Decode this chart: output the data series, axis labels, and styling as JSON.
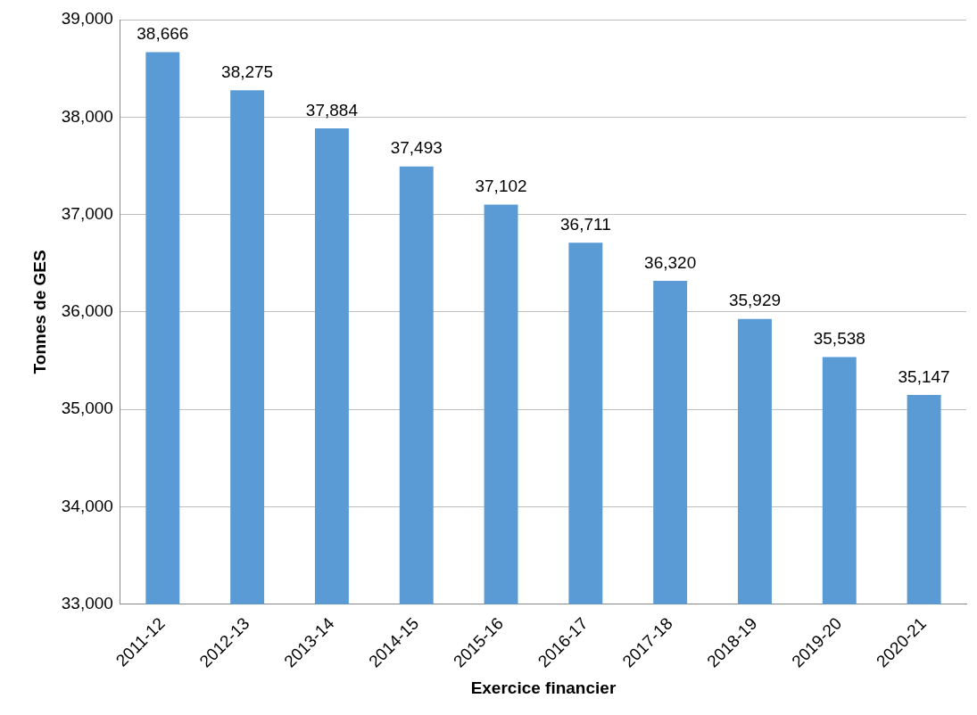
{
  "chart_data": {
    "type": "bar",
    "xlabel": "Exercice financier",
    "ylabel": "Tonnes de GES",
    "categories": [
      "2011-12",
      "2012-13",
      "2013-14",
      "2014-15",
      "2015-16",
      "2016-17",
      "2017-18",
      "2018-19",
      "2019-20",
      "2020-21"
    ],
    "values": [
      38666,
      38275,
      37884,
      37493,
      37102,
      36711,
      36320,
      35929,
      35538,
      35147
    ],
    "value_labels": [
      "38,666",
      "38,275",
      "37,884",
      "37,493",
      "37,102",
      "36,711",
      "36,320",
      "35,929",
      "35,538",
      "35,147"
    ],
    "color": "#5b9bd5",
    "ylim": [
      33000,
      39000
    ],
    "yticks": [
      {
        "value": 33000,
        "label": "33,000"
      },
      {
        "value": 34000,
        "label": "34,000"
      },
      {
        "value": 35000,
        "label": "35,000"
      },
      {
        "value": 36000,
        "label": "36,000"
      },
      {
        "value": 37000,
        "label": "37,000"
      },
      {
        "value": 38000,
        "label": "38,000"
      },
      {
        "value": 39000,
        "label": "39,000"
      }
    ],
    "grid": "y",
    "legend": false
  }
}
